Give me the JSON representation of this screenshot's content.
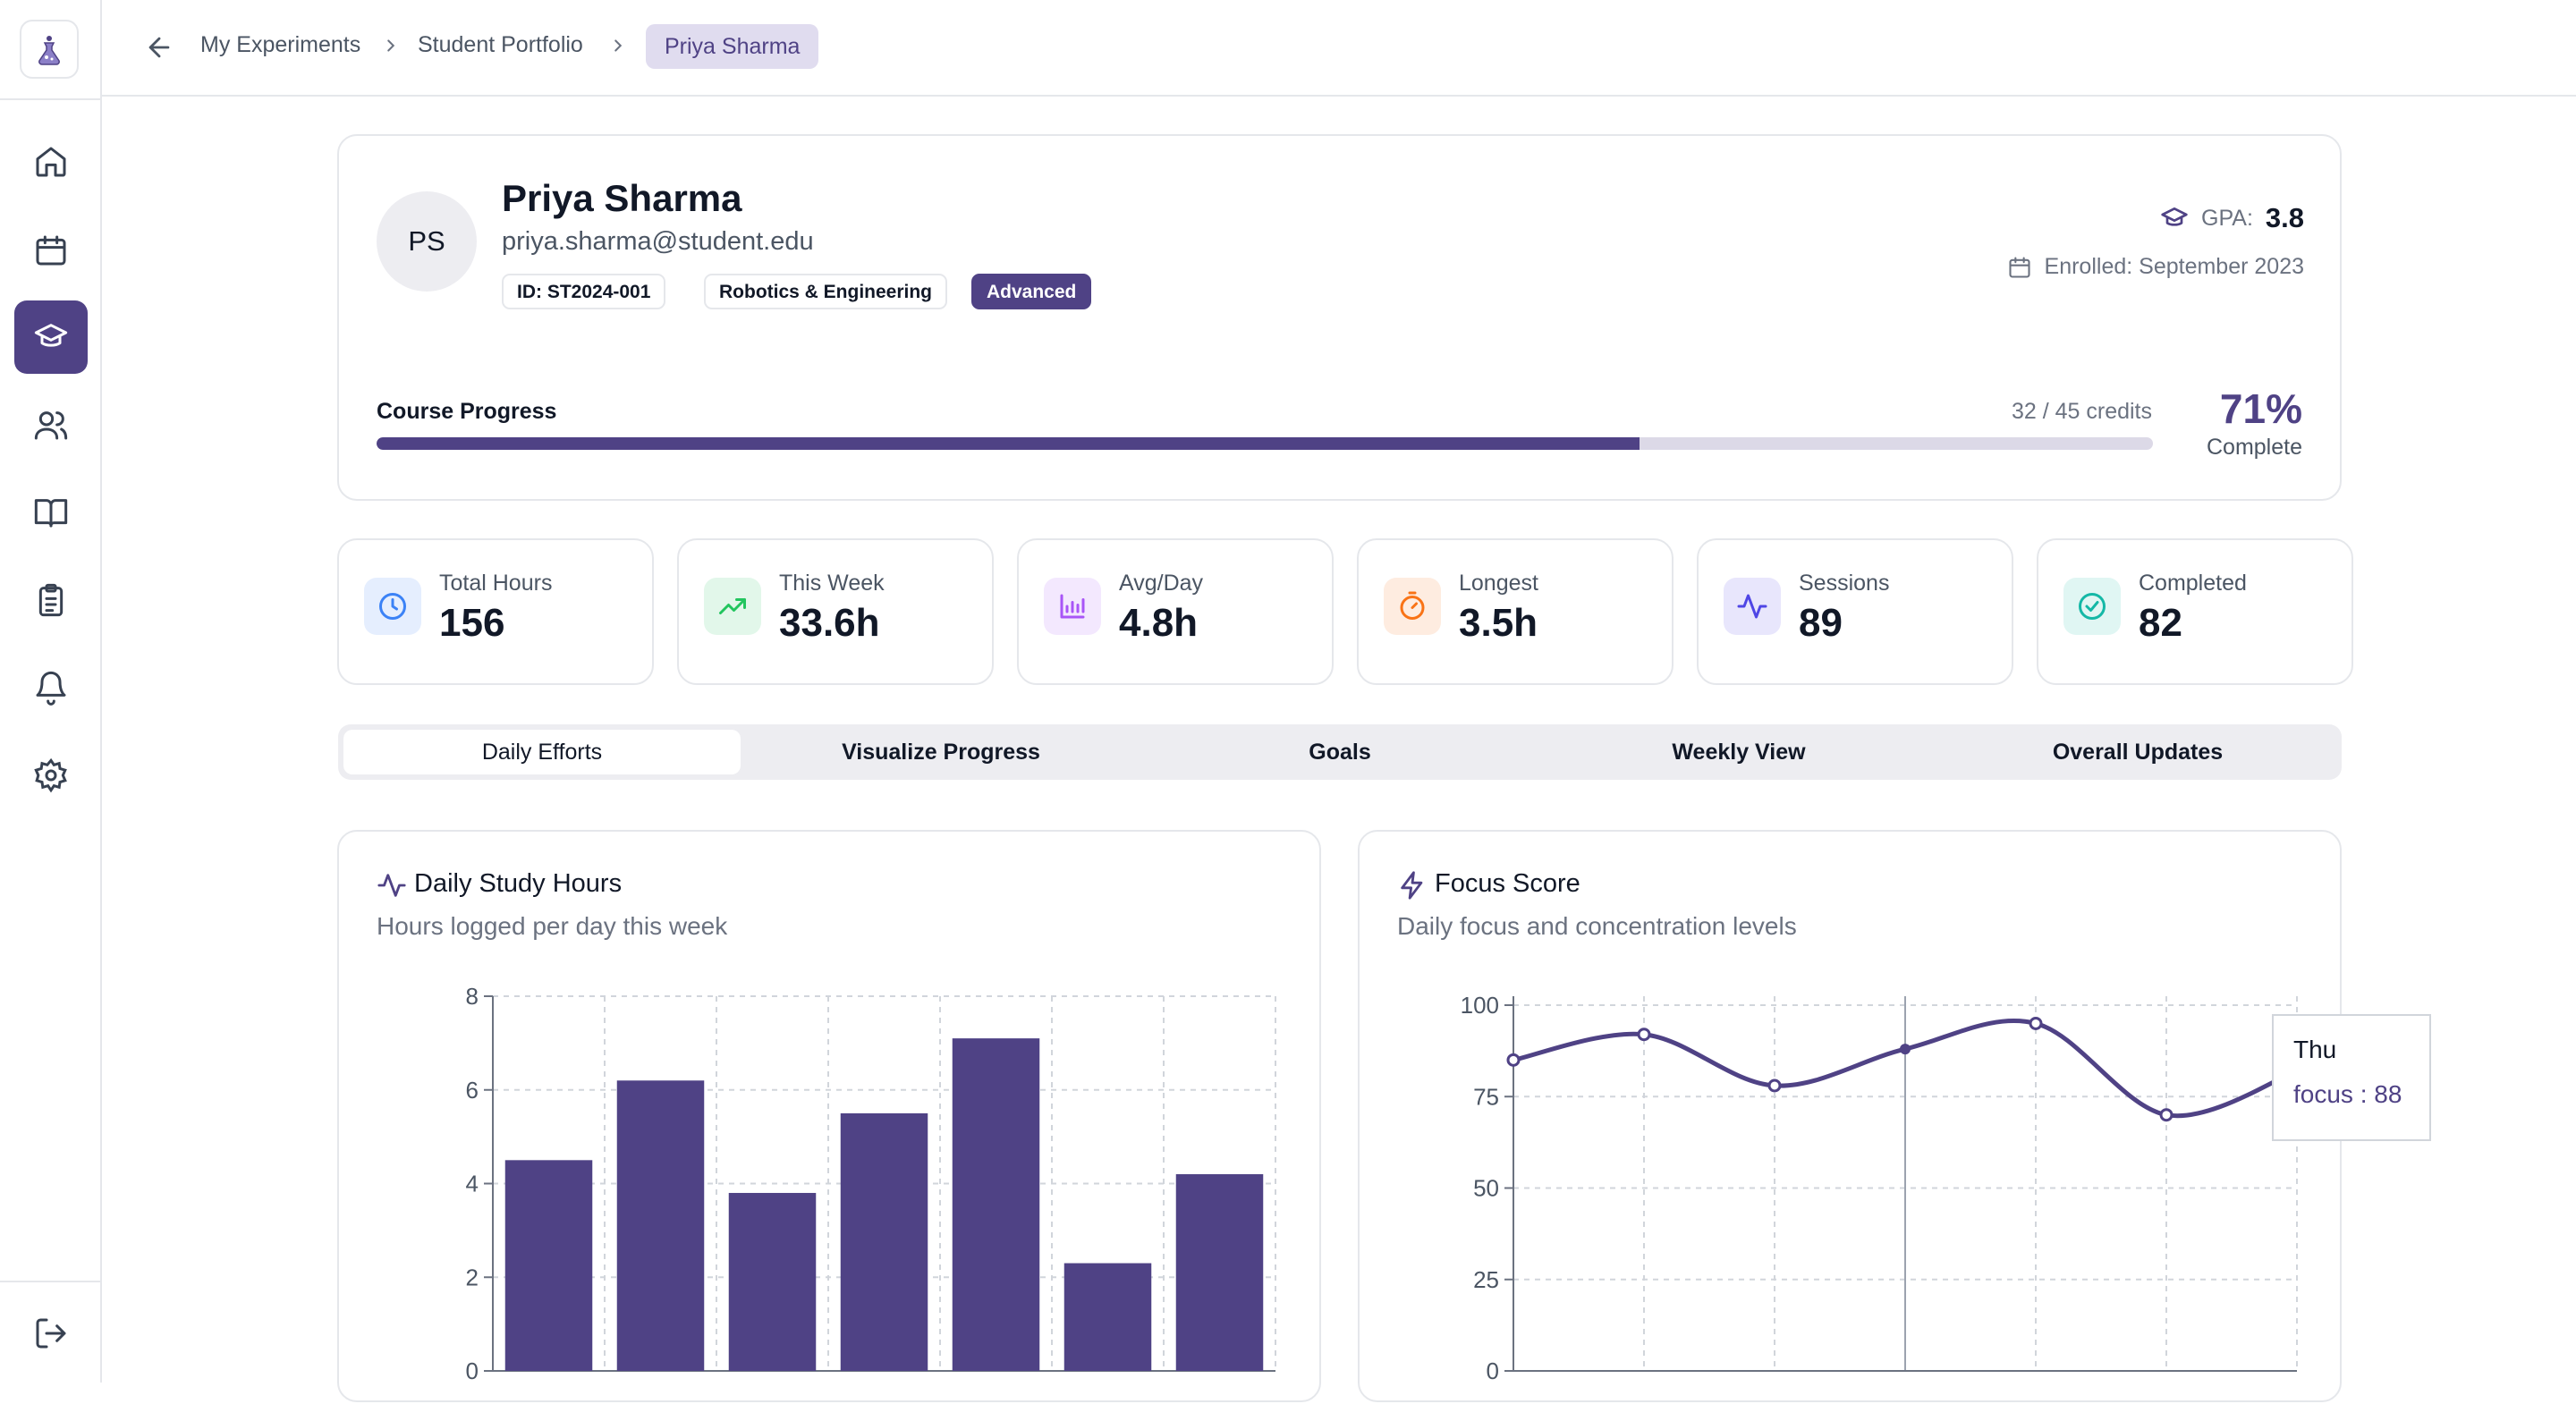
{
  "breadcrumb": {
    "items": [
      "My Experiments",
      "Student Portfolio"
    ],
    "current": "Priya Sharma"
  },
  "sidebar": {
    "items": [
      {
        "icon": "home-icon"
      },
      {
        "icon": "calendar-icon"
      },
      {
        "icon": "graduation-cap-icon",
        "active": true
      },
      {
        "icon": "users-icon"
      },
      {
        "icon": "book-open-icon"
      },
      {
        "icon": "clipboard-list-icon"
      },
      {
        "icon": "bell-icon"
      },
      {
        "icon": "settings-icon"
      }
    ],
    "logout_icon": "logout-icon"
  },
  "profile": {
    "initials": "PS",
    "name": "Priya Sharma",
    "email": "priya.sharma@student.edu",
    "badges": [
      "ID: ST2024-001",
      "Robotics & Engineering",
      "Advanced"
    ],
    "gpa_label": "GPA:",
    "gpa_value": "3.8",
    "enrolled": "Enrolled: September 2023"
  },
  "course_progress": {
    "label": "Course Progress",
    "credits": "32 / 45 credits",
    "fraction": 0.711,
    "percent_text": "71%",
    "complete_label": "Complete"
  },
  "stats": [
    {
      "label": "Total Hours",
      "value": "156",
      "icon": "clock-icon",
      "color": "#3b82f6"
    },
    {
      "label": "This Week",
      "value": "33.6h",
      "icon": "trending-up-icon",
      "color": "#22c55e"
    },
    {
      "label": "Avg/Day",
      "value": "4.8h",
      "icon": "bar-chart-icon",
      "color": "#a855f7"
    },
    {
      "label": "Longest",
      "value": "3.5h",
      "icon": "timer-icon",
      "color": "#f97316"
    },
    {
      "label": "Sessions",
      "value": "89",
      "icon": "activity-icon",
      "color": "#4f46e5"
    },
    {
      "label": "Completed",
      "value": "82",
      "icon": "check-circle-icon",
      "color": "#14b8a6"
    }
  ],
  "tabs": [
    "Daily Efforts",
    "Visualize Progress",
    "Goals",
    "Weekly View",
    "Overall Updates"
  ],
  "active_tab": 0,
  "charts": {
    "hours": {
      "title": "Daily Study Hours",
      "subtitle": "Hours logged per day this week"
    },
    "focus": {
      "title": "Focus Score",
      "subtitle": "Daily focus and concentration levels"
    }
  },
  "tooltip": {
    "day": "Thu",
    "text": "focus : 88"
  },
  "accent": "#4f4285",
  "chart_data": [
    {
      "type": "bar",
      "title": "Daily Study Hours",
      "values": [
        4.5,
        6.2,
        3.8,
        5.5,
        7.1,
        2.3,
        4.2
      ],
      "ylim": [
        0,
        8
      ],
      "yticks": [
        0,
        2,
        4,
        6,
        8
      ],
      "grid": true
    },
    {
      "type": "line",
      "title": "Focus Score",
      "series": [
        {
          "name": "focus",
          "values": [
            85,
            92,
            78,
            88,
            95,
            70,
            82
          ]
        }
      ],
      "ylim": [
        0,
        100
      ],
      "yticks": [
        0,
        25,
        50,
        75,
        100
      ],
      "grid": true
    }
  ]
}
